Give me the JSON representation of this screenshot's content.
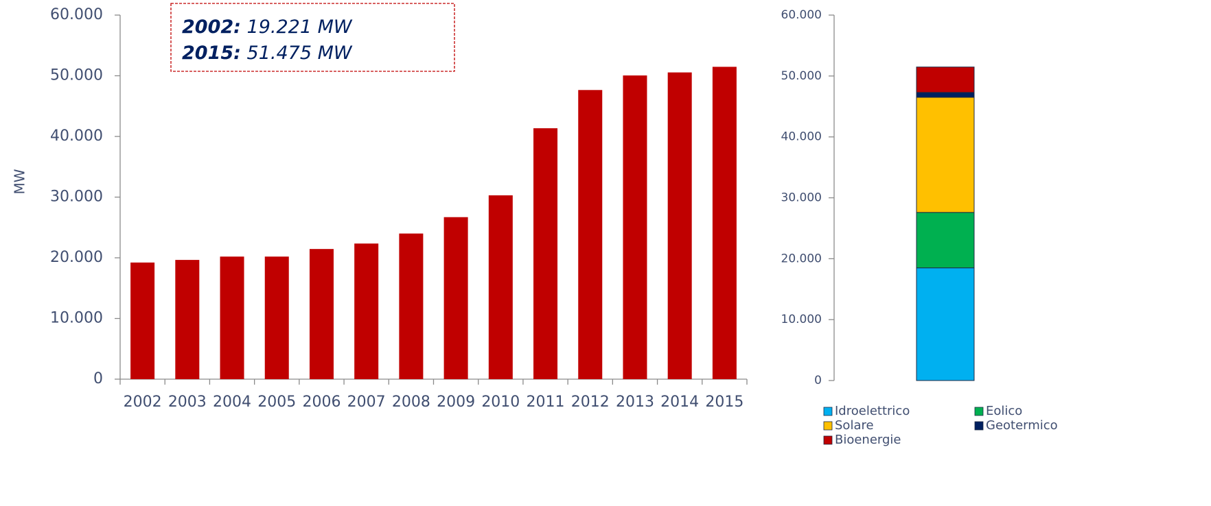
{
  "chart_data": [
    {
      "type": "bar",
      "y_label": "MW",
      "annotations": [
        {
          "label": "2002:",
          "text": "19.221 MW"
        },
        {
          "label": "2015:",
          "text": "51.475 MW"
        }
      ],
      "categories": [
        "2002",
        "2003",
        "2004",
        "2005",
        "2006",
        "2007",
        "2008",
        "2009",
        "2010",
        "2011",
        "2012",
        "2013",
        "2014",
        "2015"
      ],
      "values": [
        19221,
        19650,
        20200,
        20200,
        21450,
        22350,
        24000,
        26700,
        30300,
        41350,
        47650,
        50050,
        50550,
        51475
      ],
      "color": "#c00000",
      "ylim": [
        0,
        60000
      ],
      "yticks": [
        0,
        {
          "value": 10000,
          "label": "10.000"
        },
        {
          "value": 20000,
          "label": "20.000"
        },
        {
          "value": 30000,
          "label": "30.000"
        },
        {
          "value": 40000,
          "label": "40.000"
        },
        {
          "value": 50000,
          "label": "50.000"
        },
        {
          "value": 60000,
          "label": "60.000"
        }
      ]
    },
    {
      "type": "bar",
      "stacked": true,
      "categories": [
        null
      ],
      "series": [
        {
          "name": "Idroelettrico",
          "color": "#00b0f0",
          "values": [
            18500
          ]
        },
        {
          "name": "Eolico",
          "color": "#00b050",
          "values": [
            9100
          ]
        },
        {
          "name": "Solare",
          "color": "#ffc000",
          "values": [
            18900
          ]
        },
        {
          "name": "Geotermico",
          "color": "#002060",
          "values": [
            800
          ]
        },
        {
          "name": "Bioenergie",
          "color": "#c00000",
          "values": [
            4175
          ]
        }
      ],
      "ylim": [
        0,
        60000
      ],
      "yticks": [
        0,
        {
          "value": 10000,
          "label": "10.000"
        },
        {
          "value": 20000,
          "label": "20.000"
        },
        {
          "value": 30000,
          "label": "30.000"
        },
        {
          "value": 40000,
          "label": "40.000"
        },
        {
          "value": 50000,
          "label": "50.000"
        },
        {
          "value": 60000,
          "label": "60.000"
        }
      ],
      "legend": "bottom"
    }
  ]
}
